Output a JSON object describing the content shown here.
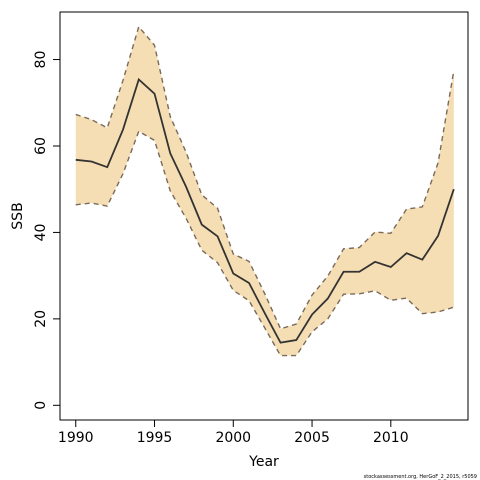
{
  "chart_data": {
    "type": "line",
    "xlabel": "Year",
    "ylabel": "SSB",
    "xlim": [
      1989,
      2014.9
    ],
    "ylim": [
      -3.4,
      91
    ],
    "x_ticks": [
      1990,
      1995,
      2000,
      2005,
      2010
    ],
    "y_ticks": [
      0,
      20,
      40,
      60,
      80
    ],
    "grid": false,
    "legend": "none",
    "colors": {
      "band": "#f5deb3",
      "band_edge": "#7a6a5a",
      "line": "#333333"
    },
    "footnote": "stockassessment.org, HerGoF_2_2015, r5059",
    "series": [
      {
        "role": "estimate",
        "x": [
          1990,
          1991,
          1992,
          1993,
          1994,
          1995,
          1996,
          1997,
          1998,
          1999,
          2000,
          2001,
          2002,
          2003,
          2004,
          2005,
          2006,
          2007,
          2008,
          2009,
          2010,
          2011,
          2012,
          2013,
          2014
        ],
        "y": [
          56.8,
          56.4,
          55.1,
          63.8,
          75.4,
          72.1,
          58.3,
          50.6,
          41.8,
          39.1,
          30.5,
          28.3,
          21.3,
          14.5,
          15.1,
          21.0,
          24.7,
          30.9,
          30.9,
          33.2,
          32.0,
          35.2,
          33.7,
          39.2,
          50.0
        ]
      },
      {
        "role": "upper",
        "x": [
          1990,
          1991,
          1992,
          1993,
          1994,
          1995,
          1996,
          1997,
          1998,
          1999,
          2000,
          2001,
          2002,
          2003,
          2004,
          2005,
          2006,
          2007,
          2008,
          2009,
          2010,
          2011,
          2012,
          2013,
          2014
        ],
        "y": [
          67.3,
          66.1,
          64.2,
          75.2,
          87.6,
          83.3,
          66.8,
          58.6,
          48.7,
          45.6,
          35.0,
          33.3,
          25.8,
          17.7,
          18.8,
          25.5,
          29.9,
          36.2,
          36.5,
          40.1,
          39.8,
          45.4,
          45.9,
          56.1,
          77.4
        ]
      },
      {
        "role": "lower",
        "x": [
          1990,
          1991,
          1992,
          1993,
          1994,
          1995,
          1996,
          1997,
          1998,
          1999,
          2000,
          2001,
          2002,
          2003,
          2004,
          2005,
          2006,
          2007,
          2008,
          2009,
          2010,
          2011,
          2012,
          2013,
          2014
        ],
        "y": [
          46.4,
          46.8,
          46.1,
          53.6,
          63.4,
          61.3,
          49.6,
          43.3,
          35.9,
          33.0,
          26.6,
          24.2,
          17.9,
          11.5,
          11.5,
          17.0,
          20.0,
          25.7,
          25.8,
          26.5,
          24.3,
          24.8,
          21.2,
          21.6,
          22.7
        ]
      }
    ]
  }
}
